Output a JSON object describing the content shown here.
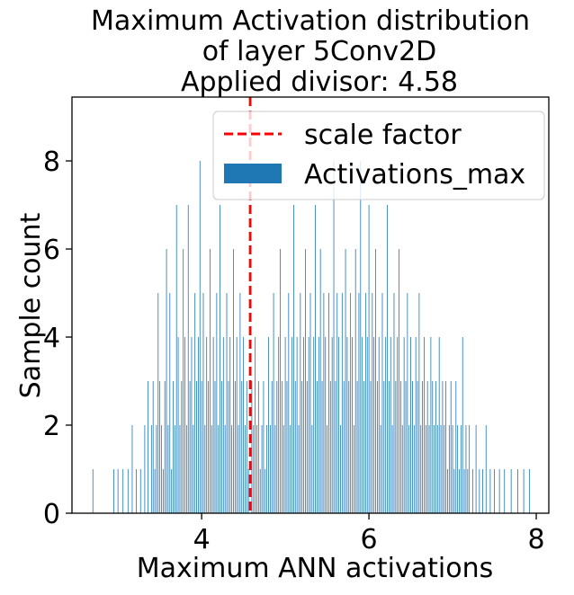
{
  "chart_data": {
    "type": "bar",
    "title_lines": [
      "Maximum Activation distribution",
      "of layer 5Conv2D",
      "Applied divisor: 4.58"
    ],
    "xlabel": "Maximum ANN activations",
    "ylabel": "Sample count",
    "xlim": [
      2.45,
      8.15
    ],
    "ylim": [
      0,
      9.45
    ],
    "xticks": [
      4,
      6,
      8
    ],
    "yticks": [
      0,
      2,
      4,
      6,
      8
    ],
    "legend_position": "top-right",
    "legend": {
      "line_label": "scale factor",
      "bar_label": "Activations_max"
    },
    "scale_factor": {
      "name": "scale factor",
      "x": 4.58,
      "color": "#ff0000",
      "style": "dashed"
    },
    "bar_color": "#1f77b4",
    "series": [
      {
        "name": "Activations_max",
        "bins": [
          [
            2.7,
            1
          ],
          [
            2.95,
            1
          ],
          [
            3.0,
            1
          ],
          [
            3.06,
            1
          ],
          [
            3.12,
            1
          ],
          [
            3.17,
            2
          ],
          [
            3.22,
            1
          ],
          [
            3.27,
            1
          ],
          [
            3.32,
            2
          ],
          [
            3.36,
            3
          ],
          [
            3.4,
            2
          ],
          [
            3.42,
            3
          ],
          [
            3.44,
            1
          ],
          [
            3.46,
            2
          ],
          [
            3.48,
            5
          ],
          [
            3.5,
            3
          ],
          [
            3.52,
            2
          ],
          [
            3.54,
            1
          ],
          [
            3.56,
            3
          ],
          [
            3.58,
            6
          ],
          [
            3.6,
            2
          ],
          [
            3.62,
            5
          ],
          [
            3.64,
            1
          ],
          [
            3.66,
            3
          ],
          [
            3.68,
            2
          ],
          [
            3.7,
            7
          ],
          [
            3.72,
            4
          ],
          [
            3.74,
            2
          ],
          [
            3.76,
            3
          ],
          [
            3.78,
            6
          ],
          [
            3.8,
            4
          ],
          [
            3.82,
            2
          ],
          [
            3.84,
            7
          ],
          [
            3.86,
            3
          ],
          [
            3.88,
            4
          ],
          [
            3.9,
            2
          ],
          [
            3.92,
            5
          ],
          [
            3.94,
            3
          ],
          [
            3.96,
            4
          ],
          [
            3.98,
            8
          ],
          [
            4.0,
            3
          ],
          [
            4.02,
            5
          ],
          [
            4.04,
            2
          ],
          [
            4.06,
            4
          ],
          [
            4.08,
            3
          ],
          [
            4.1,
            6
          ],
          [
            4.12,
            2
          ],
          [
            4.14,
            4
          ],
          [
            4.16,
            3
          ],
          [
            4.18,
            5
          ],
          [
            4.2,
            2
          ],
          [
            4.22,
            7
          ],
          [
            4.24,
            3
          ],
          [
            4.26,
            4
          ],
          [
            4.28,
            2
          ],
          [
            4.3,
            5
          ],
          [
            4.32,
            3
          ],
          [
            4.34,
            4
          ],
          [
            4.36,
            2
          ],
          [
            4.38,
            6
          ],
          [
            4.4,
            3
          ],
          [
            4.42,
            4
          ],
          [
            4.44,
            2
          ],
          [
            4.46,
            5
          ],
          [
            4.48,
            3
          ],
          [
            4.5,
            4
          ],
          [
            4.52,
            2
          ],
          [
            4.54,
            3
          ],
          [
            4.56,
            1
          ],
          [
            4.6,
            3
          ],
          [
            4.62,
            2
          ],
          [
            4.64,
            4
          ],
          [
            4.66,
            2
          ],
          [
            4.68,
            3
          ],
          [
            4.7,
            1
          ],
          [
            4.72,
            2
          ],
          [
            4.74,
            3
          ],
          [
            4.76,
            1
          ],
          [
            4.78,
            2
          ],
          [
            4.8,
            4
          ],
          [
            4.82,
            2
          ],
          [
            4.84,
            3
          ],
          [
            4.86,
            5
          ],
          [
            4.88,
            2
          ],
          [
            4.9,
            3
          ],
          [
            4.92,
            4
          ],
          [
            4.94,
            6
          ],
          [
            4.96,
            3
          ],
          [
            4.98,
            2
          ],
          [
            5.0,
            4
          ],
          [
            5.02,
            3
          ],
          [
            5.04,
            5
          ],
          [
            5.06,
            2
          ],
          [
            5.08,
            4
          ],
          [
            5.1,
            7
          ],
          [
            5.12,
            3
          ],
          [
            5.14,
            4
          ],
          [
            5.16,
            2
          ],
          [
            5.18,
            5
          ],
          [
            5.2,
            3
          ],
          [
            5.22,
            4
          ],
          [
            5.24,
            6
          ],
          [
            5.26,
            3
          ],
          [
            5.28,
            4
          ],
          [
            5.3,
            5
          ],
          [
            5.32,
            2
          ],
          [
            5.34,
            4
          ],
          [
            5.36,
            7
          ],
          [
            5.38,
            3
          ],
          [
            5.4,
            4
          ],
          [
            5.42,
            6
          ],
          [
            5.44,
            3
          ],
          [
            5.46,
            5
          ],
          [
            5.48,
            4
          ],
          [
            5.5,
            2
          ],
          [
            5.52,
            5
          ],
          [
            5.54,
            3
          ],
          [
            5.56,
            4
          ],
          [
            5.58,
            8
          ],
          [
            5.6,
            3
          ],
          [
            5.62,
            5
          ],
          [
            5.64,
            4
          ],
          [
            5.66,
            2
          ],
          [
            5.68,
            5
          ],
          [
            5.7,
            3
          ],
          [
            5.72,
            6
          ],
          [
            5.74,
            4
          ],
          [
            5.76,
            3
          ],
          [
            5.78,
            5
          ],
          [
            5.8,
            4
          ],
          [
            5.82,
            2
          ],
          [
            5.84,
            6
          ],
          [
            5.86,
            3
          ],
          [
            5.88,
            5
          ],
          [
            5.9,
            8
          ],
          [
            5.92,
            4
          ],
          [
            5.94,
            3
          ],
          [
            5.96,
            5
          ],
          [
            5.98,
            4
          ],
          [
            6.0,
            7
          ],
          [
            6.02,
            3
          ],
          [
            6.04,
            5
          ],
          [
            6.06,
            4
          ],
          [
            6.08,
            6
          ],
          [
            6.1,
            3
          ],
          [
            6.12,
            4
          ],
          [
            6.14,
            2
          ],
          [
            6.16,
            5
          ],
          [
            6.18,
            3
          ],
          [
            6.2,
            4
          ],
          [
            6.22,
            7
          ],
          [
            6.24,
            3
          ],
          [
            6.26,
            4
          ],
          [
            6.28,
            2
          ],
          [
            6.3,
            5
          ],
          [
            6.32,
            3
          ],
          [
            6.34,
            4
          ],
          [
            6.36,
            6
          ],
          [
            6.38,
            3
          ],
          [
            6.4,
            2
          ],
          [
            6.42,
            4
          ],
          [
            6.44,
            3
          ],
          [
            6.46,
            5
          ],
          [
            6.48,
            2
          ],
          [
            6.5,
            4
          ],
          [
            6.52,
            3
          ],
          [
            6.54,
            2
          ],
          [
            6.56,
            4
          ],
          [
            6.58,
            3
          ],
          [
            6.6,
            5
          ],
          [
            6.62,
            2
          ],
          [
            6.64,
            3
          ],
          [
            6.66,
            4
          ],
          [
            6.68,
            2
          ],
          [
            6.7,
            3
          ],
          [
            6.72,
            2
          ],
          [
            6.74,
            4
          ],
          [
            6.76,
            3
          ],
          [
            6.78,
            2
          ],
          [
            6.8,
            3
          ],
          [
            6.82,
            2
          ],
          [
            6.84,
            4
          ],
          [
            6.86,
            2
          ],
          [
            6.88,
            3
          ],
          [
            6.9,
            2
          ],
          [
            6.92,
            3
          ],
          [
            6.94,
            1
          ],
          [
            6.96,
            2
          ],
          [
            6.98,
            3
          ],
          [
            7.0,
            2
          ],
          [
            7.02,
            1
          ],
          [
            7.04,
            3
          ],
          [
            7.06,
            2
          ],
          [
            7.08,
            1
          ],
          [
            7.1,
            2
          ],
          [
            7.12,
            4
          ],
          [
            7.14,
            1
          ],
          [
            7.16,
            2
          ],
          [
            7.18,
            1
          ],
          [
            7.2,
            2
          ],
          [
            7.24,
            1
          ],
          [
            7.28,
            2
          ],
          [
            7.32,
            1
          ],
          [
            7.36,
            1
          ],
          [
            7.4,
            2
          ],
          [
            7.45,
            1
          ],
          [
            7.5,
            1
          ],
          [
            7.56,
            1
          ],
          [
            7.62,
            1
          ],
          [
            7.7,
            1
          ],
          [
            7.78,
            1
          ],
          [
            7.85,
            1
          ],
          [
            7.92,
            1
          ]
        ]
      }
    ]
  }
}
